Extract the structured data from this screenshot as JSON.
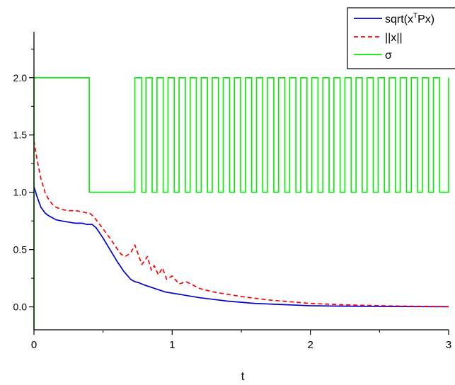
{
  "chart_data": {
    "type": "line",
    "title": "",
    "xlabel": "t",
    "ylabel": "",
    "xlim": [
      0,
      3
    ],
    "ylim": [
      -0.2,
      2.4
    ],
    "x_ticks": [
      0,
      1,
      2,
      3
    ],
    "x_tick_labels": [
      "0",
      "1",
      "2",
      "3"
    ],
    "y_ticks": [
      0.0,
      0.5,
      1.0,
      1.5,
      2.0
    ],
    "y_tick_labels": [
      "0.0",
      "0.5",
      "1.0",
      "1.5",
      "2.0"
    ],
    "grid": false,
    "legend_position": "top-right",
    "series": [
      {
        "name": "sqrt(x^TPx)",
        "legend_text": "sqrt(x",
        "legend_sup": "T",
        "legend_tail": "Px)",
        "color": "#0000cc",
        "style": "solid",
        "x": [
          0,
          0.02,
          0.05,
          0.08,
          0.1,
          0.13,
          0.16,
          0.2,
          0.25,
          0.3,
          0.35,
          0.38,
          0.4,
          0.42,
          0.45,
          0.5,
          0.55,
          0.6,
          0.65,
          0.7,
          0.73,
          0.76,
          0.8,
          0.85,
          0.9,
          0.95,
          1.0,
          1.1,
          1.2,
          1.3,
          1.4,
          1.5,
          1.6,
          1.7,
          1.8,
          1.9,
          2.0,
          2.2,
          2.4,
          2.6,
          2.8,
          3.0
        ],
        "y": [
          1.05,
          0.97,
          0.87,
          0.82,
          0.8,
          0.78,
          0.76,
          0.75,
          0.74,
          0.73,
          0.73,
          0.72,
          0.72,
          0.72,
          0.69,
          0.6,
          0.5,
          0.4,
          0.31,
          0.24,
          0.22,
          0.21,
          0.19,
          0.17,
          0.15,
          0.13,
          0.12,
          0.1,
          0.08,
          0.065,
          0.05,
          0.04,
          0.03,
          0.025,
          0.02,
          0.015,
          0.01,
          0.007,
          0.005,
          0.003,
          0.002,
          0.001
        ]
      },
      {
        "name": "||x||",
        "color": "#ff0000",
        "style": "dashed",
        "x": [
          0,
          0.02,
          0.05,
          0.08,
          0.1,
          0.13,
          0.16,
          0.2,
          0.25,
          0.3,
          0.35,
          0.38,
          0.4,
          0.42,
          0.45,
          0.5,
          0.55,
          0.6,
          0.63,
          0.66,
          0.7,
          0.73,
          0.76,
          0.78,
          0.8,
          0.82,
          0.85,
          0.87,
          0.9,
          0.93,
          0.96,
          1.0,
          1.05,
          1.1,
          1.2,
          1.3,
          1.4,
          1.5,
          1.6,
          1.7,
          1.8,
          1.9,
          2.0,
          2.2,
          2.4,
          2.6,
          2.8,
          3.0
        ],
        "y": [
          1.45,
          1.3,
          1.12,
          1.0,
          0.95,
          0.9,
          0.87,
          0.85,
          0.84,
          0.84,
          0.83,
          0.82,
          0.82,
          0.8,
          0.76,
          0.68,
          0.6,
          0.51,
          0.46,
          0.44,
          0.47,
          0.54,
          0.44,
          0.37,
          0.4,
          0.44,
          0.32,
          0.36,
          0.28,
          0.34,
          0.24,
          0.27,
          0.2,
          0.22,
          0.16,
          0.13,
          0.11,
          0.09,
          0.075,
          0.06,
          0.05,
          0.04,
          0.03,
          0.02,
          0.013,
          0.008,
          0.005,
          0.003
        ]
      },
      {
        "name": "σ",
        "color": "#00ee00",
        "style": "solid",
        "kind": "step",
        "low_intervals": [
          [
            0.4,
            0.73
          ],
          [
            0.78,
            0.81
          ],
          [
            0.855,
            0.89
          ],
          [
            0.935,
            0.97
          ],
          [
            1.015,
            1.05
          ],
          [
            1.095,
            1.13
          ],
          [
            1.175,
            1.21
          ],
          [
            1.255,
            1.29
          ],
          [
            1.335,
            1.37
          ],
          [
            1.415,
            1.45
          ],
          [
            1.495,
            1.53
          ],
          [
            1.575,
            1.61
          ],
          [
            1.655,
            1.69
          ],
          [
            1.735,
            1.77
          ],
          [
            1.815,
            1.85
          ],
          [
            1.895,
            1.93
          ],
          [
            1.975,
            2.01
          ],
          [
            2.055,
            2.09
          ],
          [
            2.135,
            2.17
          ],
          [
            2.215,
            2.25
          ],
          [
            2.295,
            2.33
          ],
          [
            2.375,
            2.41
          ],
          [
            2.455,
            2.49
          ],
          [
            2.535,
            2.57
          ],
          [
            2.615,
            2.65
          ],
          [
            2.695,
            2.73
          ],
          [
            2.775,
            2.81
          ],
          [
            2.855,
            2.89
          ],
          [
            2.935,
            3.0
          ]
        ],
        "high_value": 2,
        "low_value": 1
      }
    ]
  }
}
